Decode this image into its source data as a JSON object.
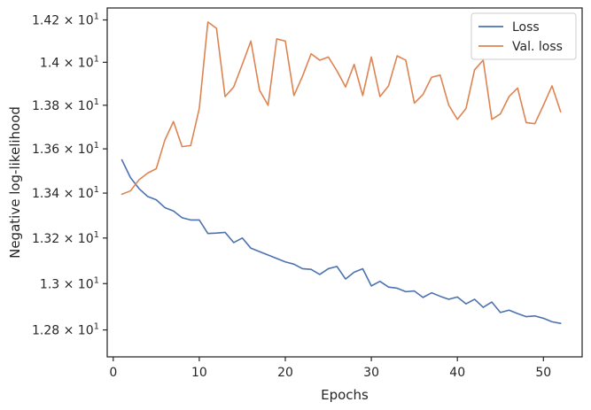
{
  "chart_data": {
    "type": "line",
    "xlabel": "Epochs",
    "ylabel": "Negative log-likelihood",
    "xlim": [
      -0.7,
      54.5
    ],
    "ylim": [
      12.685,
      14.257
    ],
    "y_scale": "log",
    "grid": false,
    "legend_position": "top-right",
    "x_ticks": [
      0,
      10,
      20,
      30,
      40,
      50
    ],
    "x_tick_labels": [
      "0",
      "10",
      "20",
      "30",
      "40",
      "50"
    ],
    "y_ticks": [
      12.8,
      13.0,
      13.2,
      13.4,
      13.6,
      13.8,
      14.0,
      14.2
    ],
    "y_tick_labels": [
      {
        "mantissa": "1.28",
        "base": "10",
        "exp": "1"
      },
      {
        "mantissa": "1.3",
        "base": "10",
        "exp": "1"
      },
      {
        "mantissa": "1.32",
        "base": "10",
        "exp": "1"
      },
      {
        "mantissa": "1.34",
        "base": "10",
        "exp": "1"
      },
      {
        "mantissa": "1.36",
        "base": "10",
        "exp": "1"
      },
      {
        "mantissa": "1.38",
        "base": "10",
        "exp": "1"
      },
      {
        "mantissa": "1.4",
        "base": "10",
        "exp": "1"
      },
      {
        "mantissa": "1.42",
        "base": "10",
        "exp": "1"
      }
    ],
    "x": [
      1,
      2,
      3,
      4,
      5,
      6,
      7,
      8,
      9,
      10,
      11,
      12,
      13,
      14,
      15,
      16,
      17,
      18,
      19,
      20,
      21,
      22,
      23,
      24,
      25,
      26,
      27,
      28,
      29,
      30,
      31,
      32,
      33,
      34,
      35,
      36,
      37,
      38,
      39,
      40,
      41,
      42,
      43,
      44,
      45,
      46,
      47,
      48,
      49,
      50,
      51,
      52
    ],
    "series": [
      {
        "name": "Loss",
        "color": "#4c72b0",
        "values": [
          13.55,
          13.47,
          13.42,
          13.385,
          13.37,
          13.335,
          13.32,
          13.29,
          13.28,
          13.28,
          13.22,
          13.222,
          13.225,
          13.18,
          13.2,
          13.155,
          13.14,
          13.125,
          13.11,
          13.095,
          13.085,
          13.065,
          13.062,
          13.04,
          13.065,
          13.075,
          13.02,
          13.05,
          13.065,
          12.99,
          13.01,
          12.985,
          12.98,
          12.965,
          12.968,
          12.94,
          12.96,
          12.945,
          12.932,
          12.942,
          12.912,
          12.932,
          12.897,
          12.92,
          12.875,
          12.885,
          12.87,
          12.857,
          12.86,
          12.85,
          12.835,
          12.828
        ]
      },
      {
        "name": "Val. loss",
        "color": "#dd8452",
        "values": [
          13.395,
          13.41,
          13.46,
          13.49,
          13.51,
          13.64,
          13.725,
          13.61,
          13.615,
          13.785,
          14.19,
          14.16,
          13.84,
          13.885,
          13.99,
          14.1,
          13.87,
          13.8,
          14.11,
          14.1,
          13.845,
          13.935,
          14.04,
          14.01,
          14.025,
          13.96,
          13.885,
          13.99,
          13.845,
          14.025,
          13.84,
          13.89,
          14.03,
          14.01,
          13.81,
          13.85,
          13.93,
          13.94,
          13.8,
          13.735,
          13.785,
          13.965,
          14.01,
          13.735,
          13.76,
          13.84,
          13.88,
          13.72,
          13.715,
          13.8,
          13.89,
          13.77
        ]
      }
    ]
  }
}
